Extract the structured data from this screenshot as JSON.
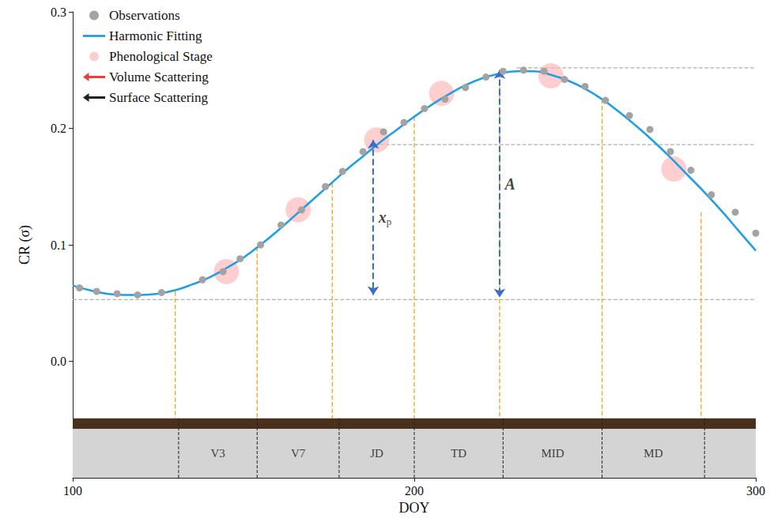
{
  "chart_data": {
    "type": "line",
    "x_label": "DOY",
    "y_label": "CR (σ)",
    "xlim": [
      100,
      300
    ],
    "xticks": [
      100,
      200,
      300
    ],
    "ylim": [
      -0.1,
      0.3
    ],
    "yticks": [
      {
        "value": 0,
        "label": "0.0"
      },
      0.1,
      0.2,
      0.3
    ],
    "grid": false,
    "legend": "upper left",
    "series": [
      {
        "name": "Observations",
        "type": "scatter",
        "marker": "circle",
        "color": "#a3a3a3",
        "x": [
          102,
          107,
          113,
          119,
          126,
          138,
          144,
          149,
          155,
          161,
          167,
          174,
          179,
          185,
          191,
          197,
          203,
          209,
          215,
          221,
          226,
          232,
          238,
          244,
          250,
          256,
          263,
          269,
          275,
          281,
          287,
          294,
          300
        ],
        "values": [
          0.063,
          0.06,
          0.058,
          0.057,
          0.059,
          0.07,
          0.077,
          0.088,
          0.1,
          0.117,
          0.13,
          0.15,
          0.163,
          0.18,
          0.197,
          0.205,
          0.217,
          0.225,
          0.235,
          0.244,
          0.249,
          0.25,
          0.249,
          0.242,
          0.236,
          0.224,
          0.211,
          0.199,
          0.18,
          0.164,
          0.143,
          0.128,
          0.11
        ]
      },
      {
        "name": "Harmonic Fitting",
        "type": "line",
        "color": "#1e9fe6",
        "x": [
          100,
          105,
          110,
          115,
          120,
          125,
          130,
          135,
          140,
          145,
          150,
          155,
          160,
          165,
          170,
          175,
          180,
          185,
          190,
          195,
          200,
          205,
          210,
          215,
          220,
          225,
          230,
          235,
          240,
          245,
          250,
          255,
          260,
          265,
          270,
          275,
          280,
          285,
          290,
          295,
          300
        ],
        "values": [
          0.065,
          0.061,
          0.058,
          0.057,
          0.057,
          0.058,
          0.061,
          0.066,
          0.072,
          0.08,
          0.089,
          0.1,
          0.112,
          0.125,
          0.138,
          0.151,
          0.164,
          0.176,
          0.188,
          0.199,
          0.21,
          0.22,
          0.229,
          0.237,
          0.243,
          0.247,
          0.249,
          0.249,
          0.246,
          0.241,
          0.234,
          0.225,
          0.214,
          0.202,
          0.189,
          0.175,
          0.16,
          0.145,
          0.129,
          0.112,
          0.095
        ]
      },
      {
        "name": "Phenological Stage",
        "type": "scatter",
        "marker": "circle",
        "color": "#ffb3b3",
        "x": [
          145,
          166,
          189,
          208,
          240,
          276
        ],
        "values": [
          0.077,
          0.13,
          0.19,
          0.23,
          0.245,
          0.165
        ]
      },
      {
        "name": "Volume Scattering",
        "type": "arrow",
        "color": "#e8403a",
        "x": [],
        "values": []
      },
      {
        "name": "Surface Scattering",
        "type": "arrow",
        "color": "#222222",
        "x": [],
        "values": []
      }
    ],
    "reference_lines": [
      {
        "y": 0.053,
        "from": 100,
        "to": 300
      },
      {
        "y": 0.186,
        "from": 190,
        "to": 300
      },
      {
        "y": 0.252,
        "from": 230,
        "to": 300
      }
    ],
    "stage_markers": {
      "x": [
        130,
        154,
        176,
        200,
        225,
        255,
        284
      ],
      "top": [
        0.06,
        0.098,
        0.153,
        0.21,
        0.247,
        0.225,
        0.128
      ],
      "bottom": -0.049
    },
    "stages": {
      "labels": [
        "V3",
        "V7",
        "JD",
        "TD",
        "MID",
        "MD"
      ],
      "bounds": [
        131,
        154,
        178,
        200,
        226,
        255,
        285
      ]
    },
    "stage_band_ylim": [
      -0.1,
      -0.058
    ],
    "soil_ylim": [
      -0.058,
      -0.049
    ],
    "annotations": [
      {
        "text": "x",
        "subscript": "p",
        "x": 188,
        "y_from": 0.19,
        "y_to": 0.057
      },
      {
        "text": "A",
        "x": 225,
        "y_from": 0.25,
        "y_to": 0.055
      }
    ]
  }
}
